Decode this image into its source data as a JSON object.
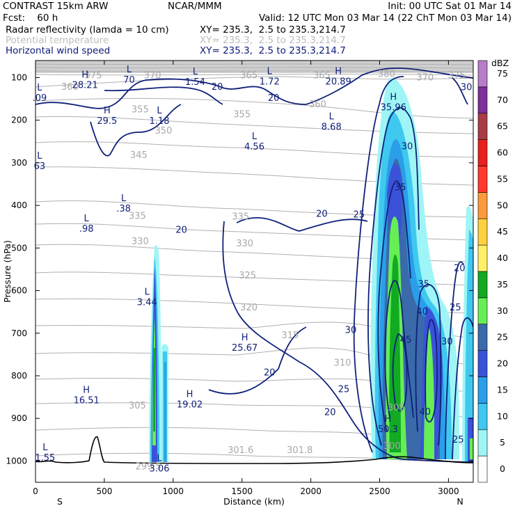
{
  "header": {
    "model": "CONTRAST 15km ARW",
    "org": "NCAR/MMM",
    "init": "Init: 00 UTC Sat 01 Mar 14",
    "fcst": "Fcst:    60 h",
    "valid": "Valid: 12 UTC Mon 03 Mar 14 (22 ChT Mon 03 Mar 14)",
    "fields": [
      {
        "name": "Radar reflectivity (lamda = 10 cm)",
        "xy": "XY= 235.3,  2.5 to 235.3,214.7",
        "color": "#000000"
      },
      {
        "name": "Potential temperature",
        "xy": "XY= 235.3,  2.5 to 235.3,214.7",
        "color": "#bdbdbd"
      },
      {
        "name": "Horizontal wind speed",
        "xy": "XY= 235.3,  2.5 to 235.3,214.7",
        "color": "#0b1a7a"
      }
    ]
  },
  "chart_data": {
    "type": "heatmap",
    "xlabel": "Distance (km)",
    "ylabel": "Pressure (hPa)",
    "xlim": [
      0,
      3180
    ],
    "ylim": [
      1050,
      60
    ],
    "x_ticks": [
      0,
      500,
      1000,
      1500,
      2000,
      2500,
      3000
    ],
    "y_ticks": [
      100,
      200,
      300,
      400,
      500,
      600,
      700,
      800,
      900,
      1000
    ],
    "x_end_labels": {
      "left": "S",
      "right": "N"
    },
    "colorbar": {
      "unit": "dBZ",
      "levels": [
        0,
        5,
        10,
        15,
        20,
        25,
        30,
        35,
        40,
        45,
        50,
        55,
        60,
        65,
        70,
        75
      ],
      "colors": [
        "#ffffff",
        "#9ff5f5",
        "#3fc8f0",
        "#2a9ee8",
        "#3b52d8",
        "#3a6aaa",
        "#66ee55",
        "#11aa22",
        "#fff066",
        "#ffd040",
        "#ff9a3c",
        "#ff3a2a",
        "#e8201c",
        "#a83c44",
        "#7d2f9a",
        "#b87cc8"
      ]
    },
    "reflectivity_cells": [
      {
        "x": 870,
        "top": 490,
        "bottom": 1005,
        "max_dbz": 30
      },
      {
        "x": 935,
        "top": 720,
        "bottom": 1005,
        "max_dbz": 15
      },
      {
        "x": 2600,
        "top": 180,
        "bottom": 1000,
        "max_dbz": 30
      },
      {
        "x": 2870,
        "top": 400,
        "bottom": 1000,
        "max_dbz": 25
      },
      {
        "x": 3130,
        "top": 370,
        "bottom": 1005,
        "max_dbz": 10
      }
    ],
    "theta_labels": [
      {
        "text": "375",
        "x": 420,
        "p": 95
      },
      {
        "text": "370",
        "x": 850,
        "p": 95
      },
      {
        "text": "365",
        "x": 1550,
        "p": 95
      },
      {
        "text": "365",
        "x": 2080,
        "p": 95
      },
      {
        "text": "380",
        "x": 2550,
        "p": 92
      },
      {
        "text": "375",
        "x": 3060,
        "p": 95
      },
      {
        "text": "370",
        "x": 2830,
        "p": 100
      },
      {
        "text": "360",
        "x": 250,
        "p": 122
      },
      {
        "text": "360",
        "x": 2050,
        "p": 163
      },
      {
        "text": "355",
        "x": 760,
        "p": 175
      },
      {
        "text": "355",
        "x": 1500,
        "p": 187
      },
      {
        "text": "350",
        "x": 930,
        "p": 225
      },
      {
        "text": "345",
        "x": 750,
        "p": 282
      },
      {
        "text": "335",
        "x": 740,
        "p": 425
      },
      {
        "text": "335",
        "x": 1490,
        "p": 427
      },
      {
        "text": "330",
        "x": 760,
        "p": 485
      },
      {
        "text": "330",
        "x": 1520,
        "p": 490
      },
      {
        "text": "325",
        "x": 1540,
        "p": 565
      },
      {
        "text": "320",
        "x": 1550,
        "p": 640
      },
      {
        "text": "315",
        "x": 1850,
        "p": 705
      },
      {
        "text": "310",
        "x": 2230,
        "p": 770
      },
      {
        "text": "305",
        "x": 740,
        "p": 870
      },
      {
        "text": "305",
        "x": 2620,
        "p": 875
      },
      {
        "text": "300",
        "x": 2590,
        "p": 965
      },
      {
        "text": "301.6",
        "x": 1490,
        "p": 975
      },
      {
        "text": "301.8",
        "x": 1920,
        "p": 975
      },
      {
        "text": "299.5",
        "x": 820,
        "p": 1013
      }
    ],
    "wind_contour_labels": [
      {
        "text": "20",
        "x": 1320,
        "p": 122
      },
      {
        "text": "20",
        "x": 1730,
        "p": 148
      },
      {
        "text": "20",
        "x": 1060,
        "p": 458
      },
      {
        "text": "20",
        "x": 2080,
        "p": 420
      },
      {
        "text": "25",
        "x": 2350,
        "p": 422
      },
      {
        "text": "30",
        "x": 2700,
        "p": 262
      },
      {
        "text": "35",
        "x": 2650,
        "p": 358
      },
      {
        "text": "35",
        "x": 2820,
        "p": 585
      },
      {
        "text": "40",
        "x": 2810,
        "p": 650
      },
      {
        "text": "45",
        "x": 2690,
        "p": 716
      },
      {
        "text": "40",
        "x": 2830,
        "p": 885
      },
      {
        "text": "30",
        "x": 2290,
        "p": 693
      },
      {
        "text": "30",
        "x": 2990,
        "p": 720
      },
      {
        "text": "25",
        "x": 2240,
        "p": 832
      },
      {
        "text": "25",
        "x": 3050,
        "p": 640
      },
      {
        "text": "25",
        "x": 3070,
        "p": 950
      },
      {
        "text": "20",
        "x": 3080,
        "p": 548
      },
      {
        "text": "20",
        "x": 1700,
        "p": 793
      },
      {
        "text": "20",
        "x": 2140,
        "p": 886
      },
      {
        "text": "30",
        "x": 3130,
        "p": 123
      }
    ],
    "extrema_labels": [
      {
        "kind": "H",
        "value": "28.21",
        "x": 360,
        "p": 100
      },
      {
        "kind": "L",
        "value": "70",
        "x": 680,
        "p": 88
      },
      {
        "kind": "L",
        "value": "1.54",
        "x": 1160,
        "p": 93
      },
      {
        "kind": "L",
        "value": "1.72",
        "x": 1700,
        "p": 92
      },
      {
        "kind": "H",
        "value": "20.89",
        "x": 2200,
        "p": 92
      },
      {
        "kind": "L",
        "value": ".09",
        "x": 30,
        "p": 130
      },
      {
        "kind": "H",
        "value": "29.5",
        "x": 520,
        "p": 184
      },
      {
        "kind": "L",
        "value": "1.18",
        "x": 900,
        "p": 184
      },
      {
        "kind": "L",
        "value": "8.68",
        "x": 2150,
        "p": 198
      },
      {
        "kind": "H",
        "value": "35.96",
        "x": 2600,
        "p": 152
      },
      {
        "kind": "L",
        "value": "4.56",
        "x": 1590,
        "p": 245
      },
      {
        "kind": "L",
        "value": "63",
        "x": 30,
        "p": 290
      },
      {
        "kind": "L",
        "value": ".38",
        "x": 640,
        "p": 390
      },
      {
        "kind": "L",
        "value": ".98",
        "x": 370,
        "p": 437
      },
      {
        "kind": "L",
        "value": "3.44",
        "x": 810,
        "p": 610
      },
      {
        "kind": "H",
        "value": "25.67",
        "x": 1520,
        "p": 717
      },
      {
        "kind": "H",
        "value": "16.51",
        "x": 370,
        "p": 840
      },
      {
        "kind": "H",
        "value": "19.02",
        "x": 1120,
        "p": 850
      },
      {
        "kind": "H",
        "value": "50.3",
        "x": 2560,
        "p": 908
      },
      {
        "kind": "L",
        "value": "1.55",
        "x": 70,
        "p": 975
      },
      {
        "kind": "L",
        "value": "3.06",
        "x": 900,
        "p": 1000
      }
    ]
  }
}
